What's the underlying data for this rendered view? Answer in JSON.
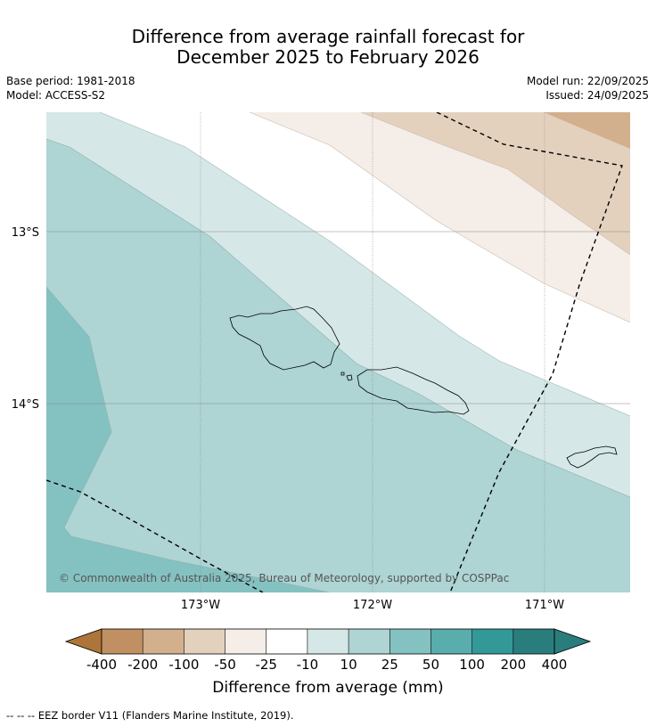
{
  "title_line1": "Difference from average rainfall forecast for",
  "title_line2": "December 2025 to February 2026",
  "meta": {
    "base_period": "Base period: 1981-2018",
    "model": "Model: ACCESS-S2",
    "model_run": "Model run: 22/09/2025",
    "issued": "Issued: 24/09/2025"
  },
  "map": {
    "lat_labels": [
      "13°S",
      "14°S"
    ],
    "lon_labels": [
      "173°W",
      "172°W",
      "171°W"
    ],
    "copyright": "© Commonwealth of Australia 2025, Bureau of Meteorology, supported by COSPPac",
    "features": [
      "Savai'i",
      "Upolu",
      "Tutuila",
      "EEZ border"
    ]
  },
  "colorbar": {
    "title": "Difference from average (mm)",
    "labels": [
      "-400",
      "-200",
      "-100",
      "-50",
      "-25",
      "-10",
      "10",
      "25",
      "50",
      "100",
      "200",
      "400"
    ],
    "colors": [
      "#ad7539",
      "#c09062",
      "#d2af8d",
      "#e3d1be",
      "#f5ede7",
      "#ffffff",
      "#d5e8e7",
      "#aed4d4",
      "#84c2c1",
      "#59adad",
      "#329998",
      "#2a7d7d"
    ]
  },
  "footnote": "--  --  -- EEZ border V11 (Flanders Marine Institute, 2019)."
}
